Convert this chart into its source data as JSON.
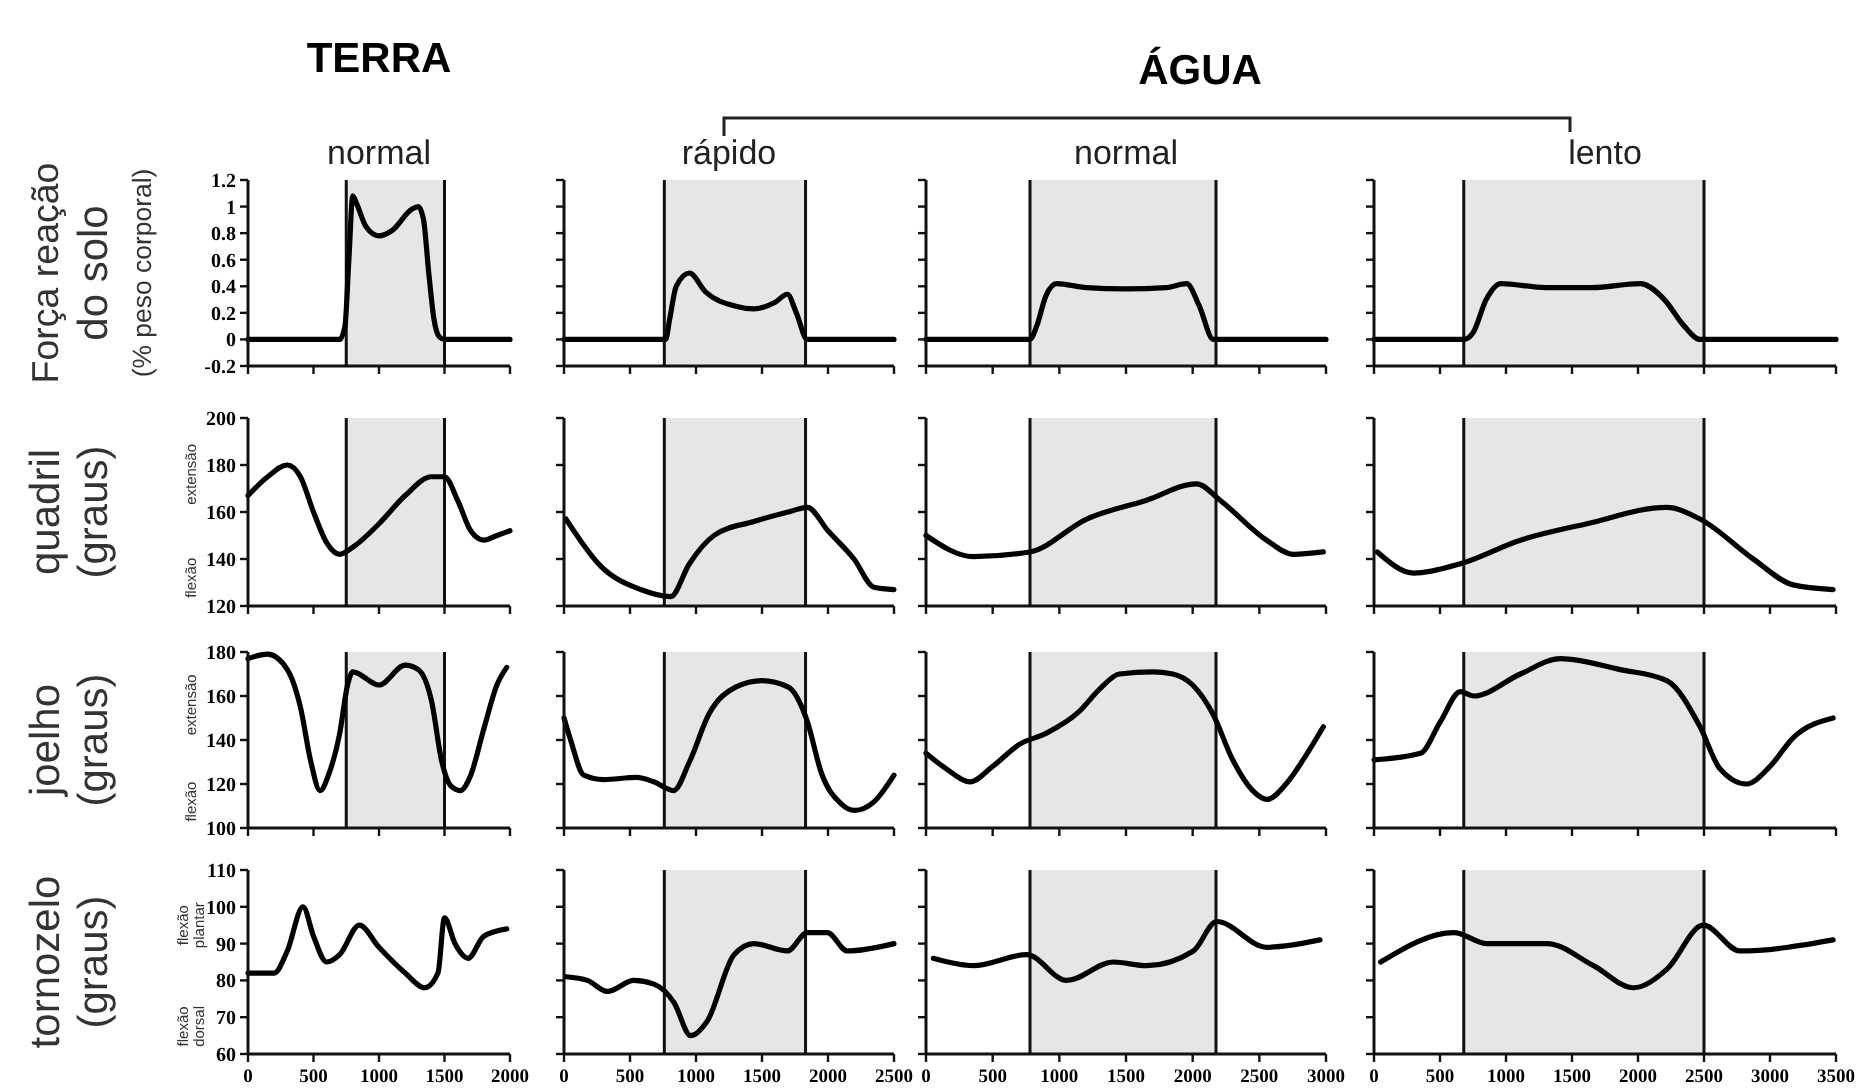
{
  "chart_data": [
    {
      "type": "line",
      "title": "normal",
      "ylabel": "Força reação\ndo solo\n(% peso corporal)",
      "annotations": [
        "TERRA"
      ],
      "color": "#000000",
      "x": [
        0,
        700,
        740,
        770,
        800,
        830,
        900,
        1000,
        1100,
        1250,
        1300,
        1340,
        1380,
        1420,
        1460,
        1500,
        2000
      ],
      "values": [
        0,
        0,
        0.1,
        0.6,
        1.08,
        1.02,
        0.85,
        0.78,
        0.82,
        0.98,
        1.0,
        0.9,
        0.5,
        0.15,
        0.02,
        0,
        0
      ],
      "xlim": [
        0,
        2000
      ],
      "xticks": [
        0,
        500,
        1000,
        1500,
        2000
      ],
      "ylim": [
        -0.2,
        1.2
      ],
      "yticks": [
        -0.2,
        0,
        0.2,
        0.4,
        0.6,
        0.8,
        1,
        1.2
      ],
      "bands": [
        {
          "axis": "x",
          "from": 750,
          "to": 1500,
          "color": "#e6e6e6"
        }
      ],
      "tick_labels": "y"
    },
    {
      "type": "line",
      "title": "rápido",
      "annotations": [
        "ÁGUA"
      ],
      "color": "#000000",
      "x": [
        0,
        770,
        800,
        850,
        950,
        1070,
        1300,
        1440,
        1600,
        1692,
        1760,
        1843,
        1900,
        2500
      ],
      "values": [
        0,
        0,
        0.15,
        0.4,
        0.5,
        0.36,
        0.25,
        0.23,
        0.28,
        0.34,
        0.2,
        0,
        0,
        0
      ],
      "xlim": [
        0,
        2500
      ],
      "xticks": [
        0,
        500,
        1000,
        1500,
        2000,
        2500
      ],
      "ylim": [
        -0.2,
        1.2
      ],
      "yticks": [
        -0.2,
        0,
        0.2,
        0.4,
        0.6,
        0.8,
        1,
        1.2
      ],
      "bands": [
        {
          "axis": "x",
          "from": 760,
          "to": 1830,
          "color": "#e6e6e6"
        }
      ],
      "tick_labels": false
    },
    {
      "type": "line",
      "title": "normal",
      "color": "#000000",
      "x": [
        0,
        780,
        830,
        900,
        980,
        1200,
        1500,
        1800,
        1955,
        2050,
        2155,
        2300,
        3000
      ],
      "values": [
        0,
        0,
        0.1,
        0.33,
        0.42,
        0.39,
        0.38,
        0.39,
        0.42,
        0.25,
        0,
        0,
        0
      ],
      "xlim": [
        0,
        3000
      ],
      "xticks": [
        0,
        500,
        1000,
        1500,
        2000,
        2500,
        3000
      ],
      "ylim": [
        -0.2,
        1.2
      ],
      "yticks": [
        -0.2,
        0,
        0.2,
        0.4,
        0.6,
        0.8,
        1,
        1.2
      ],
      "bands": [
        {
          "axis": "x",
          "from": 780,
          "to": 2175,
          "color": "#e6e6e6"
        }
      ],
      "tick_labels": false
    },
    {
      "type": "line",
      "title": "lento",
      "color": "#000000",
      "x": [
        0,
        680,
        750,
        850,
        960,
        1300,
        1650,
        2016,
        2200,
        2350,
        2470,
        2600,
        3500
      ],
      "values": [
        0,
        0,
        0.05,
        0.3,
        0.42,
        0.39,
        0.39,
        0.42,
        0.3,
        0.1,
        0,
        0,
        0
      ],
      "xlim": [
        0,
        3500
      ],
      "xticks": [
        0,
        500,
        1000,
        1500,
        2000,
        2500,
        3000,
        3500
      ],
      "ylim": [
        -0.2,
        1.2
      ],
      "yticks": [
        -0.2,
        0,
        0.2,
        0.4,
        0.6,
        0.8,
        1,
        1.2
      ],
      "bands": [
        {
          "axis": "x",
          "from": 680,
          "to": 2500,
          "color": "#e6e6e6"
        }
      ],
      "tick_labels": false
    },
    {
      "type": "line",
      "ylabel": "quadril\n(graus)",
      "annotations": [
        "extensão",
        "flexão"
      ],
      "color": "#000000",
      "x": [
        0,
        150,
        300,
        400,
        500,
        600,
        700,
        800,
        1000,
        1200,
        1400,
        1500,
        1600,
        1700,
        1800,
        1900,
        2000
      ],
      "values": [
        167,
        175,
        180,
        175,
        160,
        147,
        142,
        145,
        155,
        167,
        175,
        175,
        165,
        152,
        148,
        150,
        152
      ],
      "xlim": [
        0,
        2000
      ],
      "xticks": [
        0,
        500,
        1000,
        1500,
        2000
      ],
      "ylim": [
        120,
        200
      ],
      "yticks": [
        120,
        140,
        160,
        180,
        200
      ],
      "bands": [
        {
          "axis": "x",
          "from": 750,
          "to": 1500,
          "color": "#e6e6e6"
        }
      ],
      "tick_labels": "y"
    },
    {
      "type": "line",
      "color": "#000000",
      "x": [
        15,
        278,
        581,
        808,
        950,
        1136,
        1439,
        1700,
        1843,
        2000,
        2197,
        2348,
        2500
      ],
      "values": [
        157,
        137,
        127,
        124,
        138,
        150,
        156,
        160,
        162,
        152,
        140,
        128,
        127
      ],
      "xlim": [
        0,
        2500
      ],
      "xticks": [
        0,
        500,
        1000,
        1500,
        2000,
        2500
      ],
      "ylim": [
        120,
        200
      ],
      "yticks": [
        120,
        140,
        160,
        180,
        200
      ],
      "bands": [
        {
          "axis": "x",
          "from": 760,
          "to": 1830,
          "color": "#e6e6e6"
        }
      ],
      "tick_labels": false
    },
    {
      "type": "line",
      "color": "#000000",
      "x": [
        0,
        355,
        780,
        1205,
        1655,
        2030,
        2205,
        2555,
        2755,
        2980
      ],
      "values": [
        150,
        141,
        143,
        157,
        165,
        172,
        165,
        148,
        142,
        143
      ],
      "xlim": [
        0,
        3000
      ],
      "xticks": [
        0,
        500,
        1000,
        1500,
        2000,
        2500,
        3000
      ],
      "ylim": [
        120,
        200
      ],
      "yticks": [
        120,
        140,
        160,
        180,
        200
      ],
      "bands": [
        {
          "axis": "x",
          "from": 780,
          "to": 2175,
          "color": "#e6e6e6"
        }
      ],
      "tick_labels": false
    },
    {
      "type": "line",
      "color": "#000000",
      "x": [
        25,
        302,
        655,
        1109,
        1613,
        2218,
        2470,
        2873,
        3175,
        3478
      ],
      "values": [
        143,
        134,
        138,
        148,
        155,
        162,
        157,
        140,
        129,
        127
      ],
      "xlim": [
        0,
        3500
      ],
      "xticks": [
        0,
        500,
        1000,
        1500,
        2000,
        2500,
        3000,
        3500
      ],
      "ylim": [
        120,
        200
      ],
      "yticks": [
        120,
        140,
        160,
        180,
        200
      ],
      "bands": [
        {
          "axis": "x",
          "from": 680,
          "to": 2500,
          "color": "#e6e6e6"
        }
      ],
      "tick_labels": false
    },
    {
      "type": "line",
      "ylabel": "joelho\n(graus)",
      "annotations": [
        "extensão",
        "flexão"
      ],
      "color": "#000000",
      "x": [
        0,
        150,
        300,
        400,
        480,
        550,
        620,
        700,
        760,
        800,
        1000,
        1200,
        1300,
        1400,
        1480,
        1550,
        1620,
        1700,
        1800,
        1900,
        1975
      ],
      "values": [
        177,
        179,
        172,
        155,
        130,
        117,
        125,
        143,
        165,
        171,
        165,
        174,
        172,
        158,
        130,
        119,
        117,
        124,
        145,
        165,
        173
      ],
      "xlim": [
        0,
        2000
      ],
      "xticks": [
        0,
        500,
        1000,
        1500,
        2000
      ],
      "ylim": [
        100,
        180
      ],
      "yticks": [
        100,
        120,
        140,
        160,
        180
      ],
      "bands": [
        {
          "axis": "x",
          "from": 750,
          "to": 1500,
          "color": "#e6e6e6"
        }
      ],
      "tick_labels": "y"
    },
    {
      "type": "line",
      "color": "#000000",
      "x": [
        0,
        50,
        150,
        300,
        550,
        680,
        830,
        950,
        1100,
        1300,
        1500,
        1700,
        1840,
        1950,
        2100,
        2200,
        2350,
        2500
      ],
      "values": [
        150,
        140,
        124,
        122,
        123,
        121,
        117,
        130,
        152,
        164,
        167,
        164,
        149,
        125,
        111,
        108,
        112,
        124
      ],
      "xlim": [
        0,
        2500
      ],
      "xticks": [
        0,
        500,
        1000,
        1500,
        2000,
        2500
      ],
      "ylim": [
        100,
        180
      ],
      "yticks": [
        100,
        120,
        140,
        160,
        180
      ],
      "bands": [
        {
          "axis": "x",
          "from": 760,
          "to": 1830,
          "color": "#e6e6e6"
        }
      ],
      "tick_labels": false
    },
    {
      "type": "line",
      "color": "#000000",
      "x": [
        0,
        150,
        330,
        500,
        700,
        900,
        1150,
        1300,
        1450,
        1700,
        1850,
        2000,
        2150,
        2300,
        2450,
        2560,
        2700,
        2850,
        2980
      ],
      "values": [
        134,
        127,
        121,
        128,
        138,
        143,
        153,
        163,
        170,
        171,
        170,
        165,
        152,
        131,
        117,
        113,
        120,
        133,
        146
      ],
      "xlim": [
        0,
        3000
      ],
      "xticks": [
        0,
        500,
        1000,
        1500,
        2000,
        2500,
        3000
      ],
      "ylim": [
        100,
        180
      ],
      "yticks": [
        100,
        120,
        140,
        160,
        180
      ],
      "bands": [
        {
          "axis": "x",
          "from": 780,
          "to": 2175,
          "color": "#e6e6e6"
        }
      ],
      "tick_labels": false
    },
    {
      "type": "line",
      "color": "#000000",
      "x": [
        0,
        353,
        500,
        655,
        756,
        1109,
        1411,
        1865,
        2218,
        2470,
        2620,
        2822,
        3000,
        3175,
        3478
      ],
      "values": [
        131,
        134,
        148,
        162,
        160,
        170,
        177,
        172,
        167,
        146,
        127,
        120,
        128,
        141,
        150
      ],
      "xlim": [
        0,
        3500
      ],
      "xticks": [
        0,
        500,
        1000,
        1500,
        2000,
        2500,
        3000,
        3500
      ],
      "ylim": [
        100,
        180
      ],
      "yticks": [
        100,
        120,
        140,
        160,
        180
      ],
      "bands": [
        {
          "axis": "x",
          "from": 680,
          "to": 2500,
          "color": "#e6e6e6"
        }
      ],
      "tick_labels": false
    },
    {
      "type": "line",
      "ylabel": "tornozelo\n(graus)",
      "annotations": [
        "flexão\nplantar",
        "flexão\ndorsal"
      ],
      "color": "#000000",
      "x": [
        0,
        200,
        300,
        420,
        500,
        600,
        700,
        850,
        1000,
        1200,
        1350,
        1450,
        1500,
        1580,
        1680,
        1800,
        1975
      ],
      "values": [
        82,
        82,
        88,
        100,
        92,
        85,
        87,
        95,
        89,
        82,
        78,
        82,
        97,
        90,
        86,
        92,
        94
      ],
      "xlim": [
        0,
        2000
      ],
      "xticks": [
        0,
        500,
        1000,
        1500,
        2000
      ],
      "ylim": [
        60,
        110
      ],
      "yticks": [
        60,
        70,
        80,
        90,
        100,
        110
      ]
    },
    {
      "type": "line",
      "color": "#000000",
      "x": [
        15,
        177,
        328,
        530,
        682,
        833,
        960,
        1086,
        1288,
        1439,
        1692,
        1843,
        1995,
        2146,
        2500
      ],
      "values": [
        81,
        80,
        77,
        80,
        79,
        74,
        65,
        69,
        87,
        90,
        88,
        93,
        93,
        88,
        90
      ],
      "xlim": [
        0,
        2500
      ],
      "xticks": [
        0,
        500,
        1000,
        1500,
        2000,
        2500
      ],
      "ylim": [
        60,
        110
      ],
      "yticks": [
        60,
        70,
        80,
        90,
        100,
        110
      ],
      "bands": [
        {
          "axis": "x",
          "from": 760,
          "to": 1830,
          "color": "#e6e6e6"
        }
      ],
      "tick_labels": "x"
    },
    {
      "type": "line",
      "color": "#000000",
      "x": [
        55,
        355,
        755,
        1055,
        1405,
        1655,
        2005,
        2180,
        2555,
        2955
      ],
      "values": [
        86,
        84,
        87,
        80,
        85,
        84,
        88,
        96,
        89,
        91
      ],
      "xlim": [
        0,
        3000
      ],
      "xticks": [
        0,
        500,
        1000,
        1500,
        2000,
        2500,
        3000
      ],
      "ylim": [
        60,
        110
      ],
      "yticks": [
        60,
        70,
        80,
        90,
        100,
        110
      ],
      "bands": [
        {
          "axis": "x",
          "from": 780,
          "to": 2175,
          "color": "#e6e6e6"
        }
      ],
      "tick_labels": "x"
    },
    {
      "type": "line",
      "color": "#000000",
      "x": [
        50,
        605,
        857,
        1310,
        1663,
        1966,
        2218,
        2495,
        2772,
        3478
      ],
      "values": [
        85,
        93,
        90,
        90,
        84,
        78,
        83,
        95,
        88,
        91
      ],
      "xlim": [
        0,
        3500
      ],
      "xticks": [
        0,
        500,
        1000,
        1500,
        2000,
        2500,
        3000,
        3500
      ],
      "ylim": [
        60,
        110
      ],
      "yticks": [
        60,
        70,
        80,
        90,
        100,
        110
      ],
      "bands": [
        {
          "axis": "x",
          "from": 680,
          "to": 2500,
          "color": "#e6e6e6"
        }
      ],
      "tick_labels": "x"
    }
  ]
}
